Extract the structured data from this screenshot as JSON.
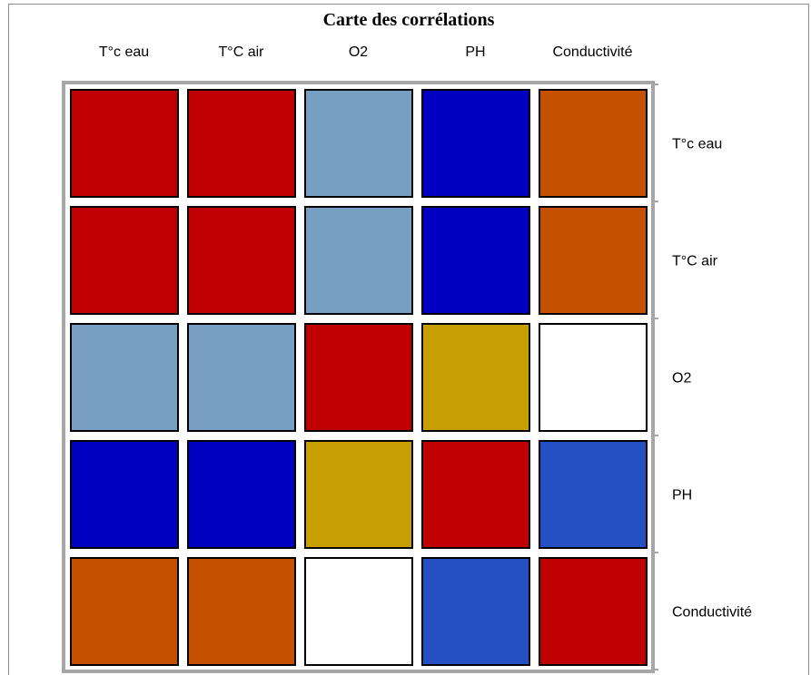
{
  "chart_data": {
    "type": "heatmap",
    "title": "Carte des corrélations",
    "categories": [
      "T°c eau",
      "T°C air",
      "O2",
      "PH",
      "Conductivité"
    ],
    "columns": [
      "T°c eau",
      "T°C air",
      "O2",
      "PH",
      "Conductivité"
    ],
    "rows": [
      "T°c eau",
      "T°C air",
      "O2",
      "PH",
      "Conductivité"
    ],
    "cell_colors": [
      [
        "#c00000",
        "#c00000",
        "#779fc4",
        "#0000c0",
        "#c55000"
      ],
      [
        "#c00000",
        "#c00000",
        "#779fc4",
        "#0000c0",
        "#c55000"
      ],
      [
        "#779fc4",
        "#779fc4",
        "#c00000",
        "#c79f00",
        "#ffffff"
      ],
      [
        "#0000c0",
        "#0000c0",
        "#c79f00",
        "#c00000",
        "#2550c4"
      ],
      [
        "#c55000",
        "#c55000",
        "#ffffff",
        "#2550c4",
        "#c00000"
      ]
    ],
    "xlabel": "",
    "ylabel": "",
    "legend": "none",
    "grid": false
  }
}
